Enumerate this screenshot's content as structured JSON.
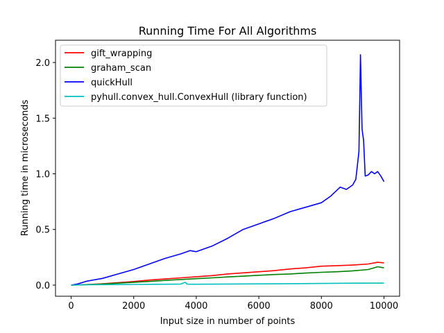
{
  "chart_data": {
    "type": "line",
    "title": "Running Time For All Algorithms",
    "xlabel": "Input size in number of points",
    "ylabel": "Running time in microseconds",
    "xlim": [
      -500,
      10500
    ],
    "ylim": [
      -0.1,
      2.2
    ],
    "xticks": [
      0,
      2000,
      4000,
      6000,
      8000,
      10000
    ],
    "yticks": [
      0.0,
      0.5,
      1.0,
      1.5,
      2.0
    ],
    "xtick_labels": [
      "0",
      "2000",
      "4000",
      "6000",
      "8000",
      "10000"
    ],
    "ytick_labels": [
      "0.0",
      "0.5",
      "1.0",
      "1.5",
      "2.0"
    ],
    "grid": false,
    "legend_position": "top-left",
    "series": [
      {
        "name": "gift_wrapping",
        "color": "#ff0000",
        "x": [
          0,
          500,
          1000,
          1500,
          2000,
          2500,
          3000,
          3500,
          4000,
          4500,
          5000,
          5500,
          6000,
          6500,
          7000,
          7500,
          8000,
          8500,
          9000,
          9500,
          9800,
          10000
        ],
        "y": [
          0.0,
          0.005,
          0.012,
          0.022,
          0.032,
          0.045,
          0.055,
          0.065,
          0.075,
          0.085,
          0.1,
          0.11,
          0.12,
          0.13,
          0.145,
          0.155,
          0.17,
          0.175,
          0.18,
          0.19,
          0.205,
          0.2
        ]
      },
      {
        "name": "graham_scan",
        "color": "#008000",
        "x": [
          0,
          500,
          1000,
          1500,
          2000,
          2500,
          3000,
          3500,
          4000,
          4500,
          5000,
          5500,
          6000,
          6500,
          7000,
          7500,
          8000,
          8500,
          9000,
          9500,
          9800,
          10000
        ],
        "y": [
          0.0,
          0.004,
          0.01,
          0.017,
          0.025,
          0.033,
          0.042,
          0.05,
          0.058,
          0.065,
          0.073,
          0.08,
          0.088,
          0.095,
          0.1,
          0.108,
          0.115,
          0.12,
          0.128,
          0.14,
          0.165,
          0.155
        ]
      },
      {
        "name": "quickHull",
        "color": "#0000ff",
        "x": [
          0,
          200,
          500,
          1000,
          1500,
          2000,
          2500,
          3000,
          3500,
          3800,
          4000,
          4500,
          5000,
          5500,
          6000,
          6500,
          7000,
          7500,
          8000,
          8300,
          8600,
          8800,
          9000,
          9100,
          9200,
          9250,
          9300,
          9350,
          9400,
          9500,
          9600,
          9700,
          9800,
          9900,
          10000
        ],
        "y": [
          0.0,
          0.01,
          0.035,
          0.06,
          0.1,
          0.14,
          0.19,
          0.24,
          0.28,
          0.31,
          0.3,
          0.35,
          0.42,
          0.5,
          0.55,
          0.6,
          0.66,
          0.7,
          0.74,
          0.8,
          0.88,
          0.86,
          0.9,
          0.95,
          1.2,
          2.07,
          1.4,
          1.3,
          0.98,
          0.99,
          1.02,
          1.0,
          1.02,
          0.98,
          0.93
        ]
      },
      {
        "name": "pyhull.convex_hull.ConvexHull (library function)",
        "color": "#00bfbf",
        "x": [
          0,
          500,
          1000,
          1500,
          2000,
          2500,
          3000,
          3500,
          3600,
          3650,
          3700,
          3800,
          4000,
          5000,
          6000,
          7000,
          8000,
          9000,
          10000
        ],
        "y": [
          0.0,
          0.003,
          0.004,
          0.005,
          0.006,
          0.007,
          0.008,
          0.009,
          0.02,
          0.025,
          0.01,
          0.008,
          0.008,
          0.01,
          0.011,
          0.013,
          0.015,
          0.017,
          0.018
        ]
      }
    ]
  }
}
